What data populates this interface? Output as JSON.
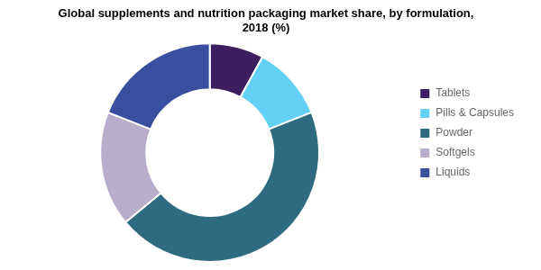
{
  "chart_data": {
    "type": "donut",
    "title": "Global supplements and nutrition packaging market share, by formulation,\n2018 (%)",
    "categories": [
      "Tablets",
      "Pills & Capsules",
      "Powder",
      "Softgels",
      "Liquids"
    ],
    "values": [
      8,
      11,
      45,
      17,
      19
    ],
    "colors": [
      "#3B1F5E",
      "#63D0F5",
      "#2E6B80",
      "#B8AECC",
      "#3A4FA0"
    ],
    "legend": "right"
  }
}
